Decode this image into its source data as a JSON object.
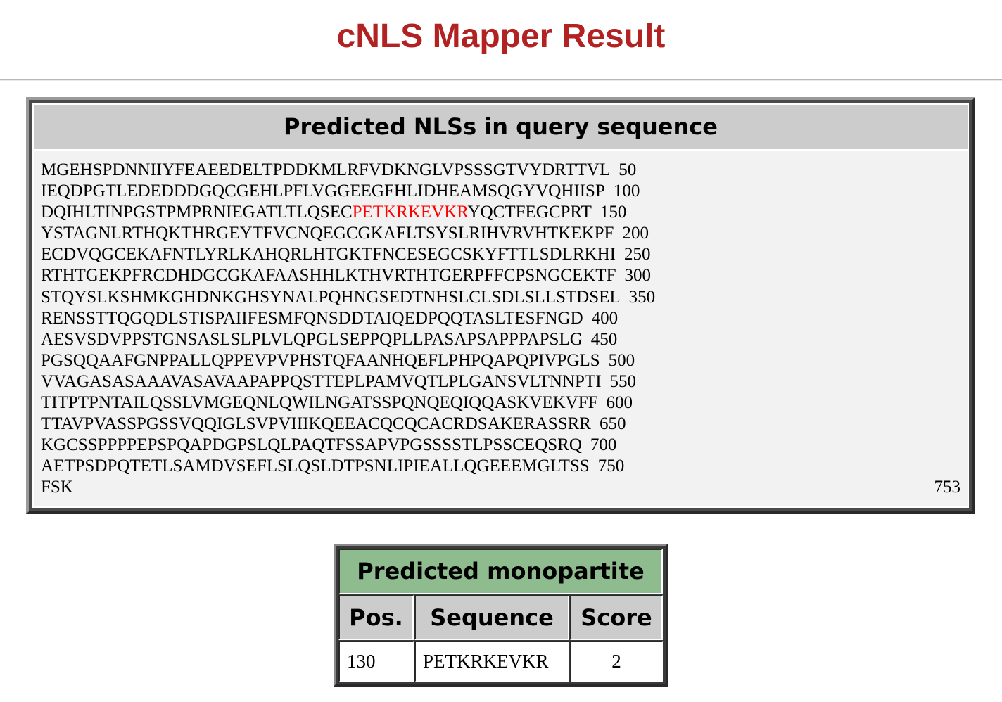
{
  "page_title": "cNLS Mapper Result",
  "sequence_panel": {
    "heading": "Predicted NLSs in query sequence",
    "lines": [
      {
        "pre": "MGEHSPDNNIIYFEAEEDELTPDDKMLRFVDKNGLVPSSSGTVYDRTTVL",
        "hl": "",
        "post": "",
        "num": "50"
      },
      {
        "pre": "IEQDPGTLEDEDDDGQCGEHLPFLVGGEEGFHLIDHEAMSQGYVQHIISP",
        "hl": "",
        "post": "",
        "num": "100"
      },
      {
        "pre": "DQIHLTINPGSTPMPRNIEGATLTLQSEC",
        "hl": "PETKRKEVKR",
        "post": "YQCTFEGCPRT",
        "num": "150"
      },
      {
        "pre": "YSTAGNLRTHQKTHRGEYTFVCNQEGCGKAFLTSYSLRIHVRVHTKEKPF",
        "hl": "",
        "post": "",
        "num": "200"
      },
      {
        "pre": "ECDVQGCEKAFNTLYRLKAHQRLHTGKTFNCESEGCSKYFTTLSDLRKHI",
        "hl": "",
        "post": "",
        "num": "250"
      },
      {
        "pre": "RTHTGEKPFRCDHDGCGKAFAASHHLKTHVRTHTGERPFFCPSNGCEKTF",
        "hl": "",
        "post": "",
        "num": "300"
      },
      {
        "pre": "STQYSLKSHMKGHDNKGHSYNALPQHNGSEDTNHSLCLSDLSLLSTDSEL",
        "hl": "",
        "post": "",
        "num": "350"
      },
      {
        "pre": "RENSSTTQGQDLSTISPAIIFESMFQNSDDTAIQEDPQQTASLTESFNGD",
        "hl": "",
        "post": "",
        "num": "400"
      },
      {
        "pre": "AESVSDVPPSTGNSASLSLPLVLQPGLSEPPQPLLPASAPSAPPPAPSLG",
        "hl": "",
        "post": "",
        "num": "450"
      },
      {
        "pre": "PGSQQAAFGNPPALLQPPEVPVPHSTQFAANHQEFLPHPQAPQPIVPGLS",
        "hl": "",
        "post": "",
        "num": "500"
      },
      {
        "pre": "VVAGASASAAAVASAVAAPAPPQSTTEPLPAMVQTLPLGANSVLTNNPTI",
        "hl": "",
        "post": "",
        "num": "550"
      },
      {
        "pre": "TITPTPNTAILQSSLVMGEQNLQWILNGATSSPQNQEQIQQASKVEKVFF",
        "hl": "",
        "post": "",
        "num": "600"
      },
      {
        "pre": "TTAVPVASSPGSSVQQIGLSVPVIIIKQEEACQCQCACRDSAKERASSRR",
        "hl": "",
        "post": "",
        "num": "650"
      },
      {
        "pre": "KGCSSPPPPEPSPQAPDGPSLQLPAQTFSSAPVPGSSSSTLPSSCEQSRQ",
        "hl": "",
        "post": "",
        "num": "700"
      },
      {
        "pre": "AETPSDPQTETLSAMDVSEFLSLQSLDTPSNLIPIEALLQGEEEMGLTSS",
        "hl": "",
        "post": "",
        "num": "750"
      },
      {
        "pre": "FSK",
        "hl": "",
        "post": "",
        "num": ""
      }
    ],
    "final_length": "753",
    "highlight_color": "#ff0000"
  },
  "result_table": {
    "caption": "Predicted monopartite NLS",
    "headers": [
      "Pos.",
      "Sequence",
      "Score"
    ],
    "rows": [
      {
        "pos": "130",
        "sequence": "PETKRKEVKR",
        "score": "2"
      }
    ]
  }
}
